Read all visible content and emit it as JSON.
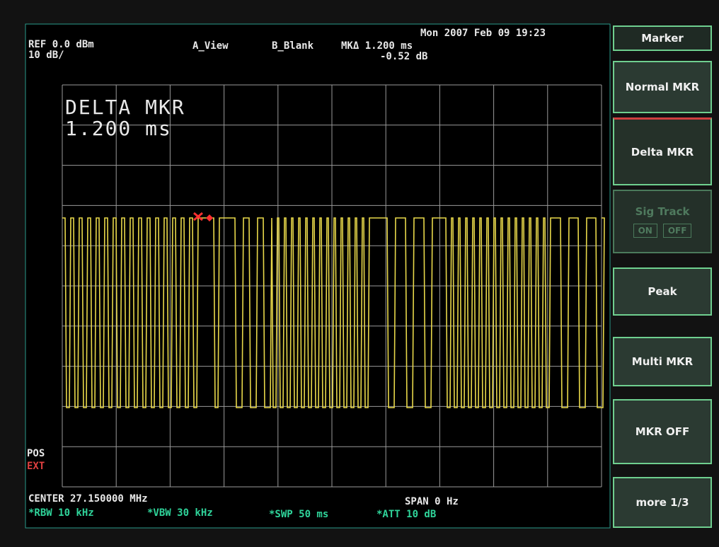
{
  "header": {
    "ref": "REF 0.0 dBm",
    "scale": "10 dB/",
    "view_a": "A_View",
    "view_b": "B_Blank",
    "marker_delta": "MKΔ 1.200 ms",
    "marker_level": "-0.52 dB",
    "datetime": "Mon 2007 Feb 09 19:23"
  },
  "annotation": {
    "line1": "DELTA MKR",
    "line2": "1.200 ms"
  },
  "trigger": {
    "pos": "POS",
    "ext": "EXT"
  },
  "footer": {
    "center": "CENTER 27.150000 MHz",
    "span": "SPAN 0 Hz",
    "rbw": "*RBW 10 kHz",
    "vbw": "*VBW 30 kHz",
    "swp": "*SWP 50 ms",
    "att": "*ATT 10 dB"
  },
  "softkeys": {
    "menu_title": "Marker",
    "keys": [
      "Normal MKR",
      "Delta MKR",
      "Sig Track",
      "Peak",
      "Multi MKR",
      "MKR OFF",
      "more 1/3"
    ],
    "sig_on": "ON",
    "sig_off": "OFF"
  }
}
